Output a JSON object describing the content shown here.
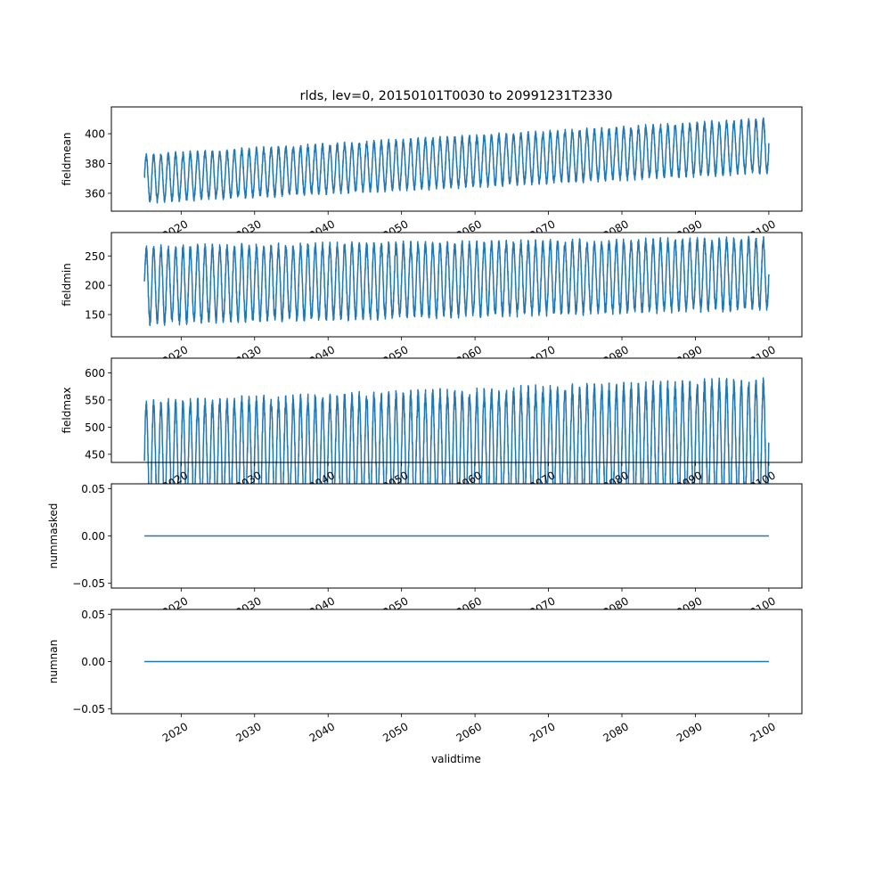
{
  "chart_data": {
    "type": "line",
    "title": "rlds, lev=0, 20150101T0030 to 20991231T2330",
    "xlabel": "validtime",
    "xlim": [
      2010.5,
      2104.5
    ],
    "x_ticks": [
      2020,
      2030,
      2040,
      2050,
      2060,
      2070,
      2080,
      2090,
      2100
    ],
    "x_tick_labels": [
      "2020",
      "2030",
      "2040",
      "2050",
      "2060",
      "2070",
      "2080",
      "2090",
      "2100"
    ],
    "x_range": [
      2015.0,
      2100.0
    ],
    "line_color": "#1f77b4",
    "panels": [
      {
        "ylabel": "fieldmean",
        "ylim": [
          348,
          418
        ],
        "y_ticks": [
          360,
          380,
          400
        ],
        "y_tick_labels": [
          "360",
          "380",
          "400"
        ],
        "seasonal_cycle": {
          "trend_start": 370,
          "trend_end": 392,
          "amplitude_start": 15,
          "amplitude_end": 17,
          "period_years": 1
        }
      },
      {
        "ylabel": "fieldmin",
        "ylim": [
          112,
          290
        ],
        "y_ticks": [
          150,
          200,
          250
        ],
        "y_tick_labels": [
          "150",
          "200",
          "250"
        ],
        "seasonal_cycle": {
          "trend_start": 200,
          "trend_end": 220,
          "amplitude_start": 62,
          "amplitude_end": 57,
          "period_years": 1
        }
      },
      {
        "ylabel": "fieldmax",
        "ylim": [
          435,
          627
        ],
        "y_ticks": [
          450,
          500,
          550,
          600
        ],
        "y_tick_labels": [
          "450",
          "500",
          "550",
          "600"
        ],
        "seasonal_cycle": {
          "trend_start": 445,
          "trend_end": 470,
          "amplitude_start": 95,
          "amplitude_end": 110,
          "period_years": 1
        }
      },
      {
        "ylabel": "nummasked",
        "ylim": [
          -0.055,
          0.055
        ],
        "y_ticks": [
          -0.05,
          0.0,
          0.05
        ],
        "y_tick_labels": [
          "−0.05",
          "0.00",
          "0.05"
        ],
        "constant_value": 0.0
      },
      {
        "ylabel": "numnan",
        "ylim": [
          -0.055,
          0.055
        ],
        "y_ticks": [
          -0.05,
          0.0,
          0.05
        ],
        "y_tick_labels": [
          "−0.05",
          "0.00",
          "0.05"
        ],
        "constant_value": 0.0
      }
    ]
  }
}
